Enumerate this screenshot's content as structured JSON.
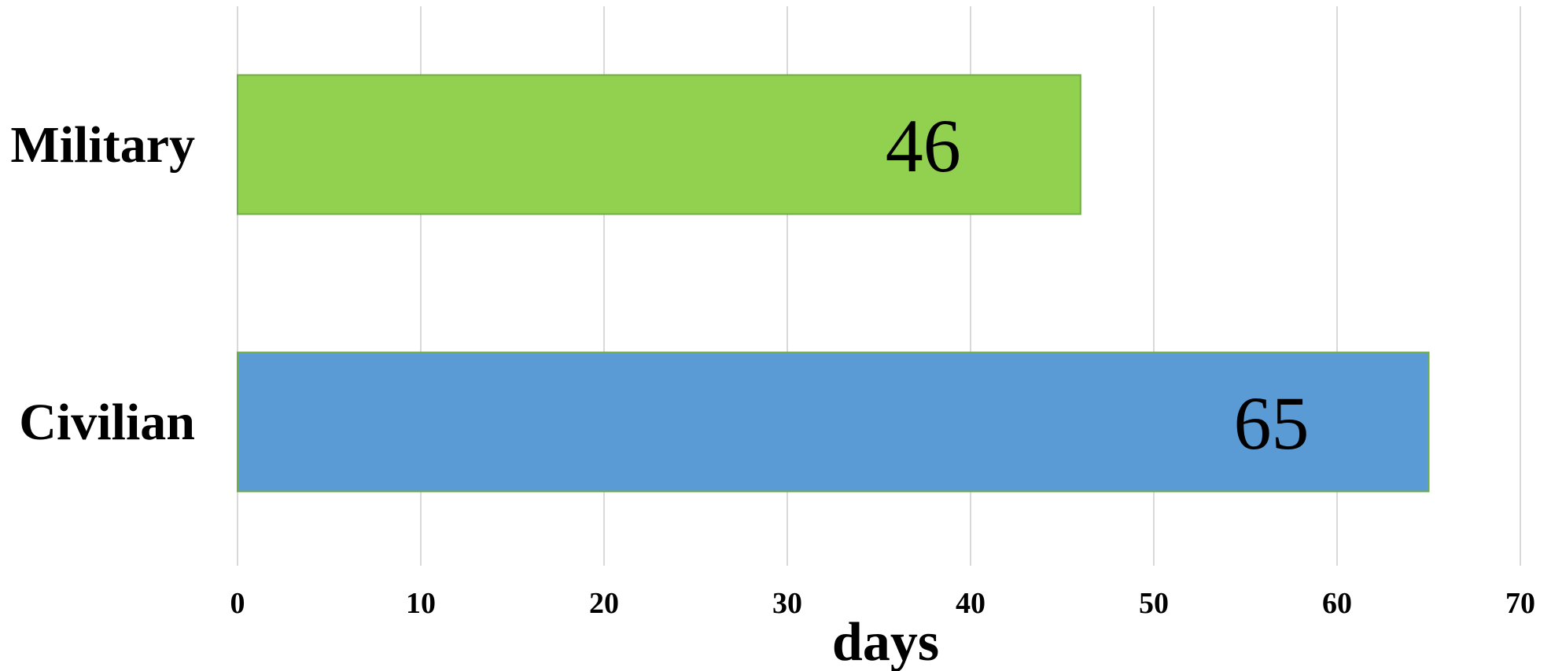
{
  "chart_data": {
    "type": "bar",
    "orientation": "horizontal",
    "categories": [
      "Military",
      "Civilian"
    ],
    "values": [
      46,
      65
    ],
    "colors": [
      "#92d050",
      "#5b9bd5"
    ],
    "border_color": "#70ad47",
    "data_labels": [
      "46",
      "65"
    ],
    "xlabel": "days",
    "ylabel": "",
    "xlim": [
      0,
      70
    ],
    "xticks": [
      0,
      10,
      20,
      30,
      40,
      50,
      60,
      70
    ],
    "xtick_labels": [
      "0",
      "10",
      "20",
      "30",
      "40",
      "50",
      "60",
      "70"
    ],
    "grid": "vertical",
    "legend": "none"
  }
}
